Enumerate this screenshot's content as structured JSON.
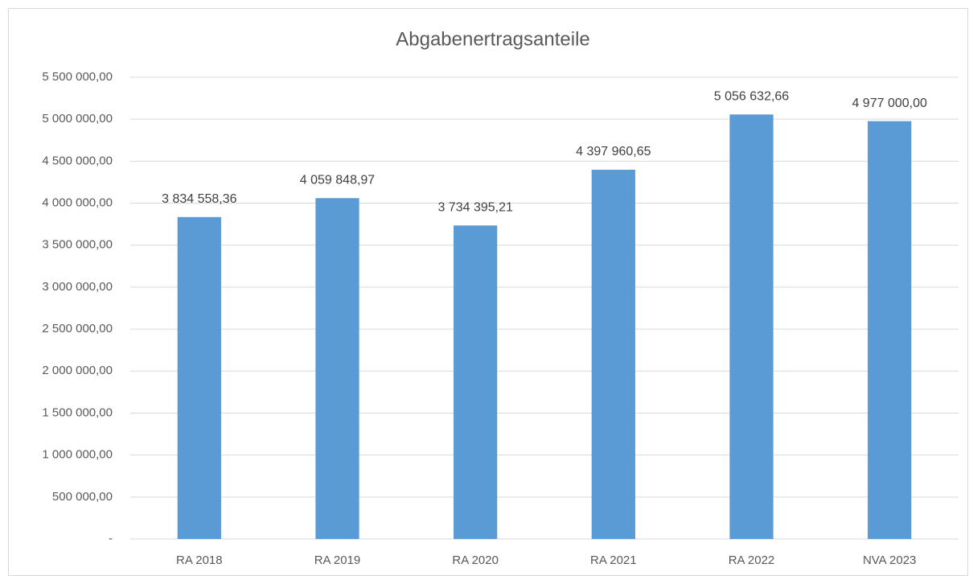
{
  "chart_data": {
    "type": "bar",
    "title": "Abgabenertragsanteile",
    "categories": [
      "RA 2018",
      "RA 2019",
      "RA 2020",
      "RA 2021",
      "RA 2022",
      "NVA 2023"
    ],
    "values": [
      3834558.36,
      4059848.97,
      3734395.21,
      4397960.65,
      5056632.66,
      4977000.0
    ],
    "value_labels": [
      "3 834 558,36",
      "4 059 848,97",
      "3 734 395,21",
      "4 397 960,65",
      "5 056 632,66",
      "4 977 000,00"
    ],
    "color": "#5b9bd5",
    "ylim": [
      0,
      5500000
    ],
    "yticks": [
      {
        "value": 0,
        "label": "-"
      },
      {
        "value": 500000,
        "label": "500 000,00"
      },
      {
        "value": 1000000,
        "label": "1 000 000,00"
      },
      {
        "value": 1500000,
        "label": "1 500 000,00"
      },
      {
        "value": 2000000,
        "label": "2 000 000,00"
      },
      {
        "value": 2500000,
        "label": "2 500 000,00"
      },
      {
        "value": 3000000,
        "label": "3 000 000,00"
      },
      {
        "value": 3500000,
        "label": "3 500 000,00"
      },
      {
        "value": 4000000,
        "label": "4 000 000,00"
      },
      {
        "value": 4500000,
        "label": "4 500 000,00"
      },
      {
        "value": 5000000,
        "label": "5 000 000,00"
      },
      {
        "value": 5500000,
        "label": "5 500 000,00"
      }
    ],
    "grid": true
  }
}
